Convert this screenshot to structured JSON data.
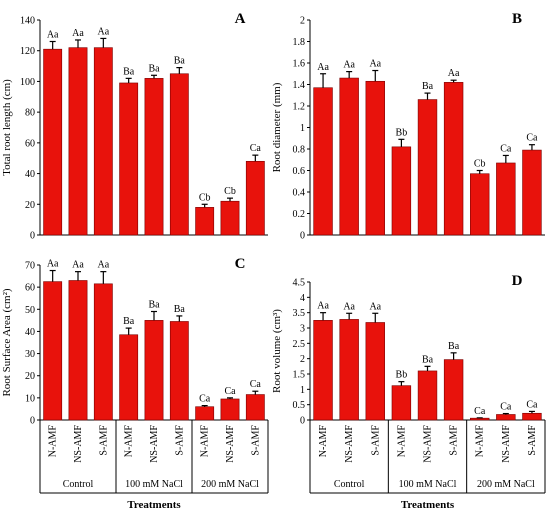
{
  "colors": {
    "bar": "#E8120C",
    "bar_edge": "#7a0000",
    "axis": "#000000"
  },
  "footer_label": "Treatments",
  "chart_data": [
    {
      "id": "A",
      "panel_label": "A",
      "type": "bar",
      "ylabel": "Total root length (cm)",
      "ylim": [
        0,
        140
      ],
      "yticks": [
        0,
        20,
        40,
        60,
        80,
        100,
        120,
        140
      ],
      "categories": [
        "N-AMF",
        "NS-AMF",
        "S-AMF",
        "N-AMF",
        "NS-AMF",
        "S-AMF",
        "N-AMF",
        "NS-AMF",
        "S-AMF"
      ],
      "values": [
        121,
        122,
        122,
        99,
        102,
        105,
        18,
        22,
        48
      ],
      "errors": [
        5,
        5,
        6,
        3,
        2,
        4,
        2,
        2,
        4
      ],
      "labels": [
        "Aa",
        "Aa",
        "Aa",
        "Ba",
        "Ba",
        "Ba",
        "Cb",
        "Cb",
        "Ca"
      ]
    },
    {
      "id": "B",
      "panel_label": "B",
      "type": "bar",
      "ylabel": "Root diameter (mm)",
      "ylim": [
        0,
        2
      ],
      "yticks": [
        0,
        0.2,
        0.4,
        0.6,
        0.8,
        1,
        1.2,
        1.4,
        1.6,
        1.8,
        2
      ],
      "categories": [
        "N-AMF",
        "NS-AMF",
        "S-AMF",
        "N-AMF",
        "NS-AMF",
        "S-AMF",
        "N-AMF",
        "NS-AMF",
        "S-AMF"
      ],
      "values": [
        1.37,
        1.46,
        1.43,
        0.82,
        1.26,
        1.42,
        0.57,
        0.67,
        0.79
      ],
      "errors": [
        0.13,
        0.06,
        0.1,
        0.07,
        0.06,
        0.02,
        0.03,
        0.07,
        0.05
      ],
      "labels": [
        "Aa",
        "Aa",
        "Aa",
        "Bb",
        "Ba",
        "Aa",
        "Cb",
        "Ca",
        "Ca"
      ]
    },
    {
      "id": "C",
      "panel_label": "C",
      "type": "bar",
      "ylabel": "Root Surface Area (cm²)",
      "ylim": [
        0,
        70
      ],
      "yticks": [
        0,
        10,
        20,
        30,
        40,
        50,
        60,
        70
      ],
      "categories": [
        "N-AMF",
        "NS-AMF",
        "S-AMF",
        "N-AMF",
        "NS-AMF",
        "S-AMF",
        "N-AMF",
        "NS-AMF",
        "S-AMF"
      ],
      "values": [
        62.5,
        63,
        61.5,
        38.5,
        45,
        44.5,
        6,
        9.5,
        11.5
      ],
      "errors": [
        5,
        4,
        5.5,
        3,
        4,
        2.5,
        0.5,
        0.5,
        1.5
      ],
      "labels": [
        "Aa",
        "Aa",
        "Aa",
        "Ba",
        "Ba",
        "Ba",
        "Ca",
        "Ca",
        "Ca"
      ]
    },
    {
      "id": "D",
      "panel_label": "D",
      "type": "bar",
      "ylabel": "Root volume (cm³)",
      "ylim": [
        0,
        4.5
      ],
      "yticks": [
        0,
        0.5,
        1,
        1.5,
        2,
        2.5,
        3,
        3.5,
        4,
        4.5
      ],
      "categories": [
        "N-AMF",
        "NS-AMF",
        "S-AMF",
        "N-AMF",
        "NS-AMF",
        "S-AMF",
        "N-AMF",
        "NS-AMF",
        "S-AMF"
      ],
      "values": [
        3.25,
        3.28,
        3.18,
        1.12,
        1.6,
        1.97,
        0.06,
        0.18,
        0.22
      ],
      "errors": [
        0.25,
        0.2,
        0.3,
        0.13,
        0.15,
        0.22,
        0.01,
        0.03,
        0.06
      ],
      "labels": [
        "Aa",
        "Aa",
        "Aa",
        "Bb",
        "Ba",
        "Ba",
        "Ca",
        "Ca",
        "Ca"
      ]
    }
  ],
  "groups": [
    "Control",
    "100 mM NaCl",
    "200 mM NaCl"
  ]
}
